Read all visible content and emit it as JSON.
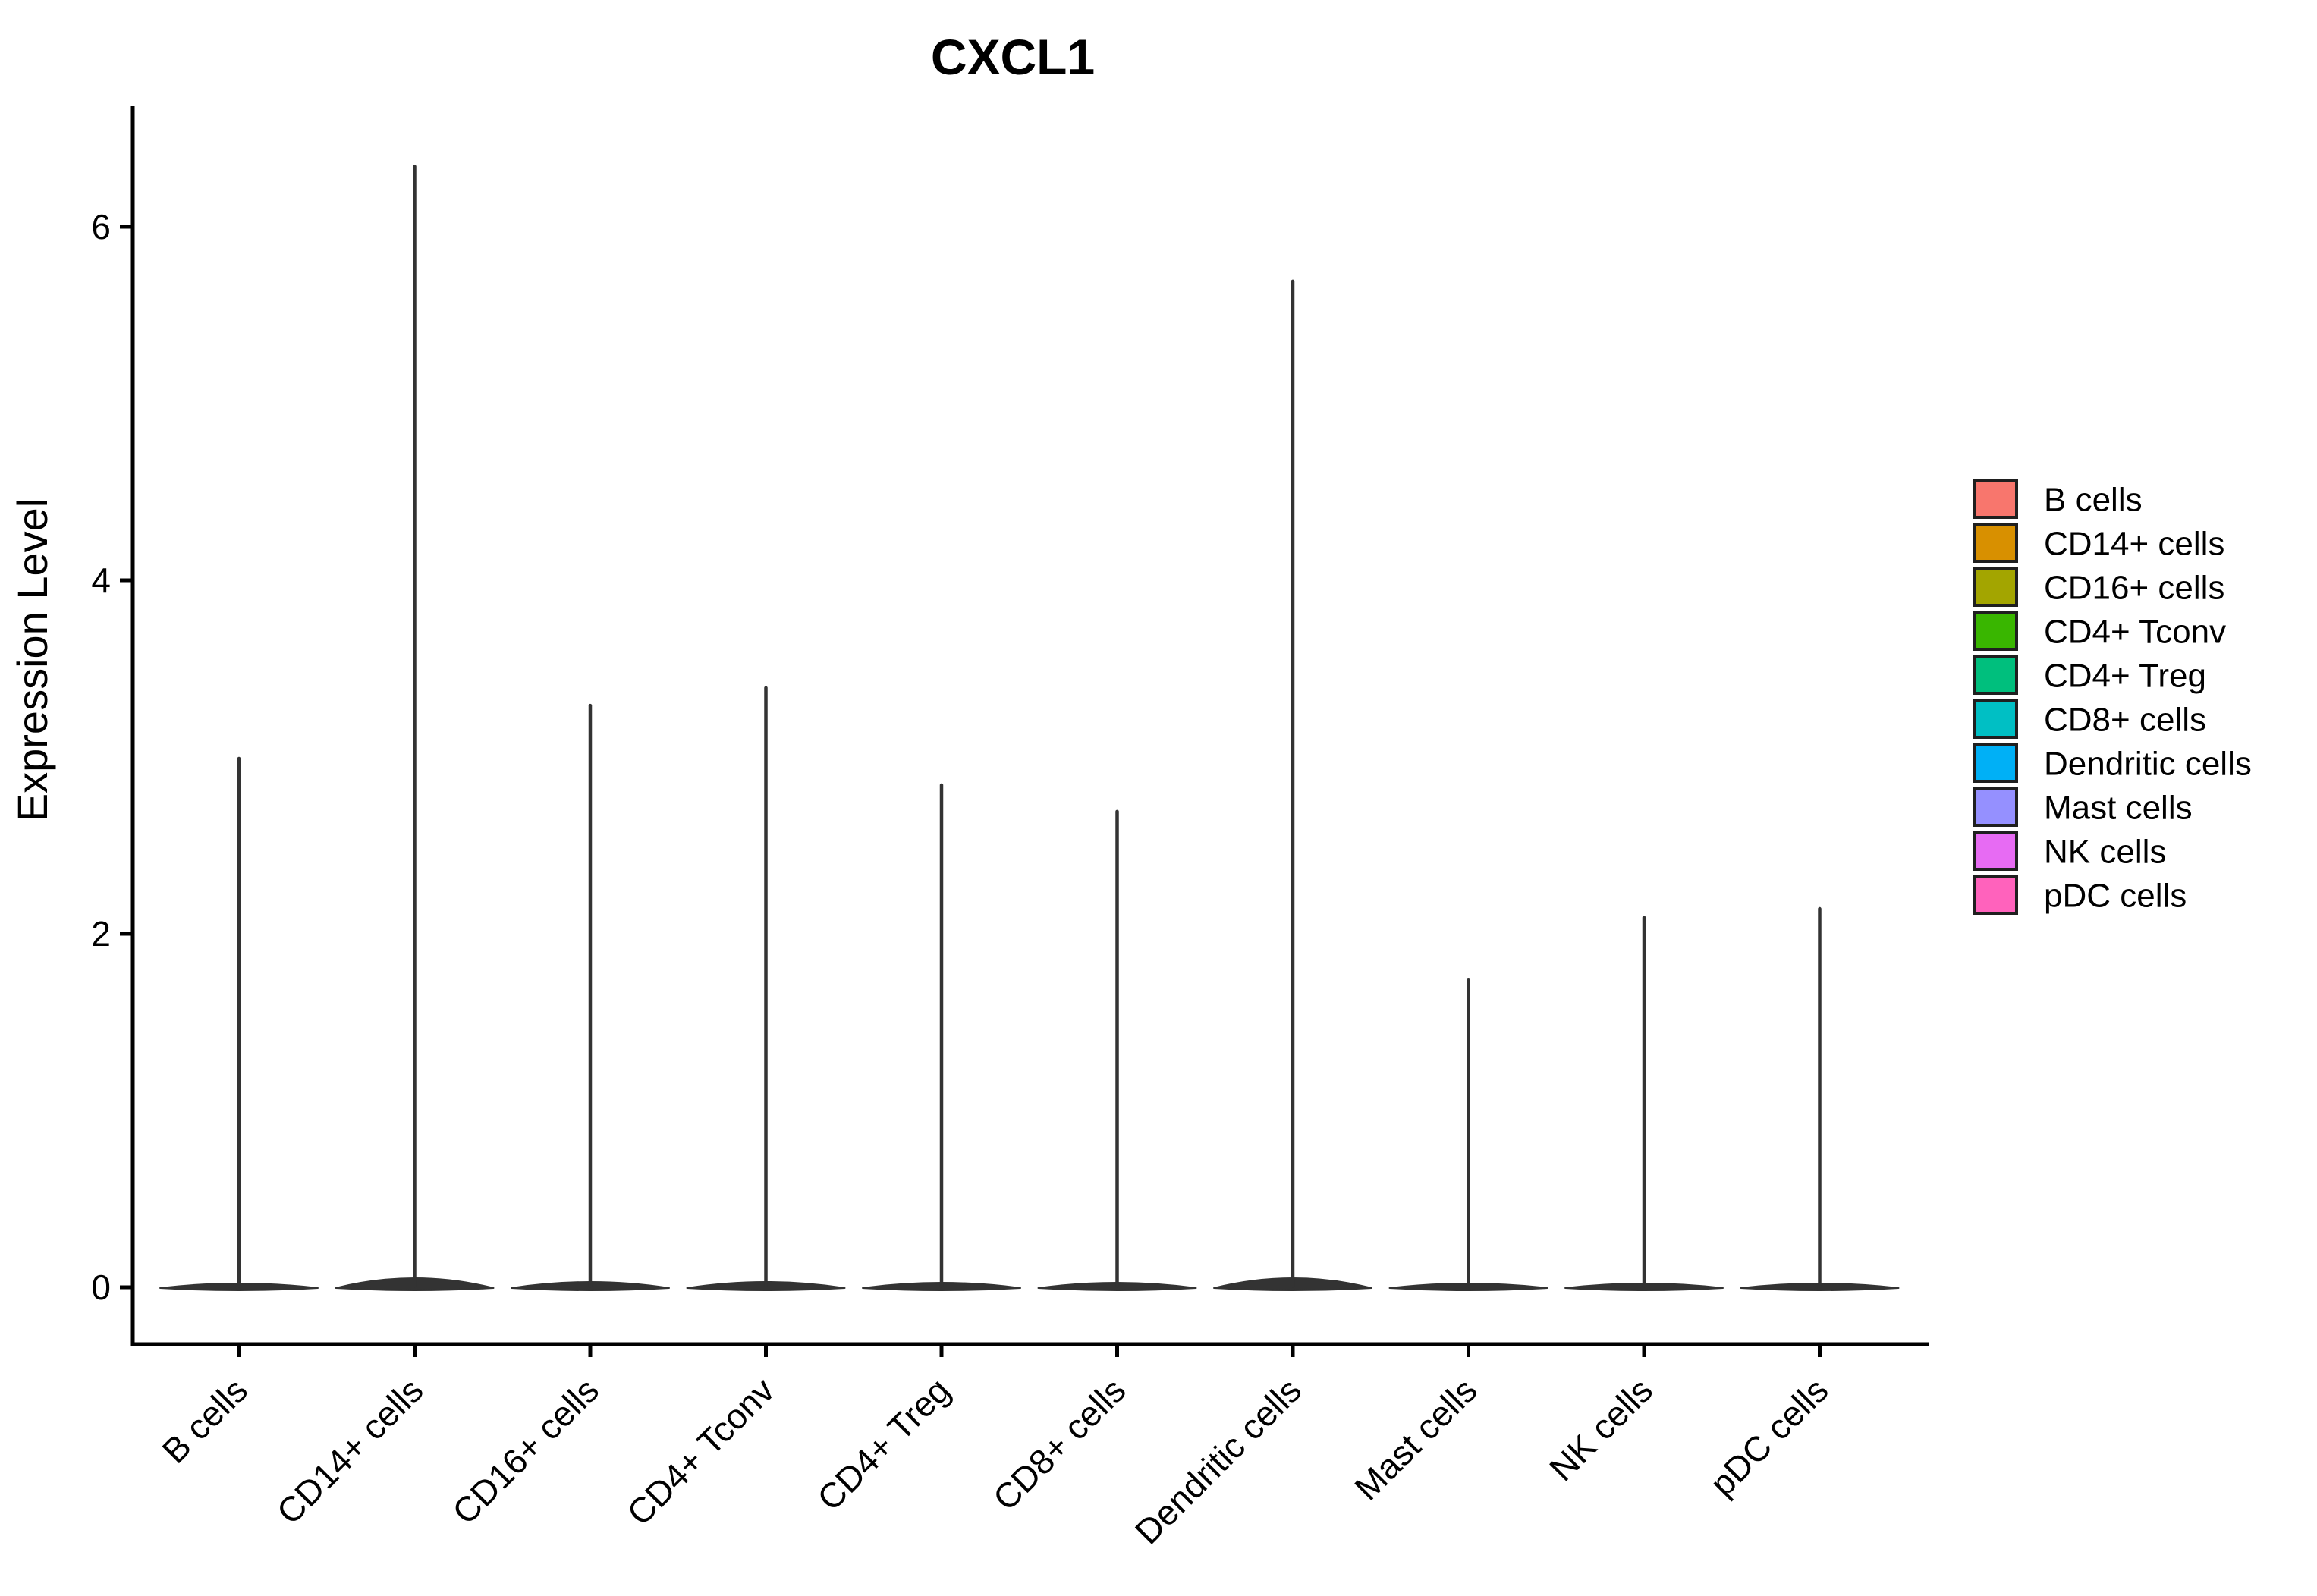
{
  "figure": {
    "title": "CXCL1",
    "y_axis_label": "Expression Level"
  },
  "chart_data": {
    "type": "violin",
    "title": "CXCL1",
    "xlabel": "",
    "ylabel": "Expression Level",
    "ylim": [
      -0.3,
      6.7
    ],
    "yticks": [
      0,
      2,
      4,
      6
    ],
    "grid": false,
    "legend_position": "right",
    "categories": [
      "B cells",
      "CD14+ cells",
      "CD16+ cells",
      "CD4+ Tconv",
      "CD4+ Treg",
      "CD8+ cells",
      "Dendritic cells",
      "Mast cells",
      "NK cells",
      "pDC cells"
    ],
    "violins": [
      {
        "label": "B cells",
        "color": "#F8766D",
        "peak_expression": 3.0,
        "density_bulk_at": 0,
        "base_bulge": 5
      },
      {
        "label": "CD14+ cells",
        "color": "#D89000",
        "peak_expression": 6.35,
        "density_bulk_at": 0,
        "base_bulge": 12
      },
      {
        "label": "CD16+ cells",
        "color": "#A3A500",
        "peak_expression": 3.3,
        "density_bulk_at": 0,
        "base_bulge": 7
      },
      {
        "label": "CD4+ Tconv",
        "color": "#39B600",
        "peak_expression": 3.4,
        "density_bulk_at": 0,
        "base_bulge": 7
      },
      {
        "label": "CD4+ Treg",
        "color": "#00BF7D",
        "peak_expression": 2.85,
        "density_bulk_at": 0,
        "base_bulge": 6
      },
      {
        "label": "CD8+ cells",
        "color": "#00BFC4",
        "peak_expression": 2.7,
        "density_bulk_at": 0,
        "base_bulge": 6
      },
      {
        "label": "Dendritic cells",
        "color": "#00B0F6",
        "peak_expression": 5.7,
        "density_bulk_at": 0,
        "base_bulge": 12
      },
      {
        "label": "Mast cells",
        "color": "#9590FF",
        "peak_expression": 1.75,
        "density_bulk_at": 0,
        "base_bulge": 5
      },
      {
        "label": "NK cells",
        "color": "#E76BF3",
        "peak_expression": 2.1,
        "density_bulk_at": 0,
        "base_bulge": 5
      },
      {
        "label": "pDC cells",
        "color": "#FF62BC",
        "peak_expression": 2.15,
        "density_bulk_at": 0,
        "base_bulge": 5
      }
    ],
    "style": {
      "violin_outline_color": "#333333",
      "axis_color": "#000000",
      "background": "#FFFFFF"
    }
  }
}
